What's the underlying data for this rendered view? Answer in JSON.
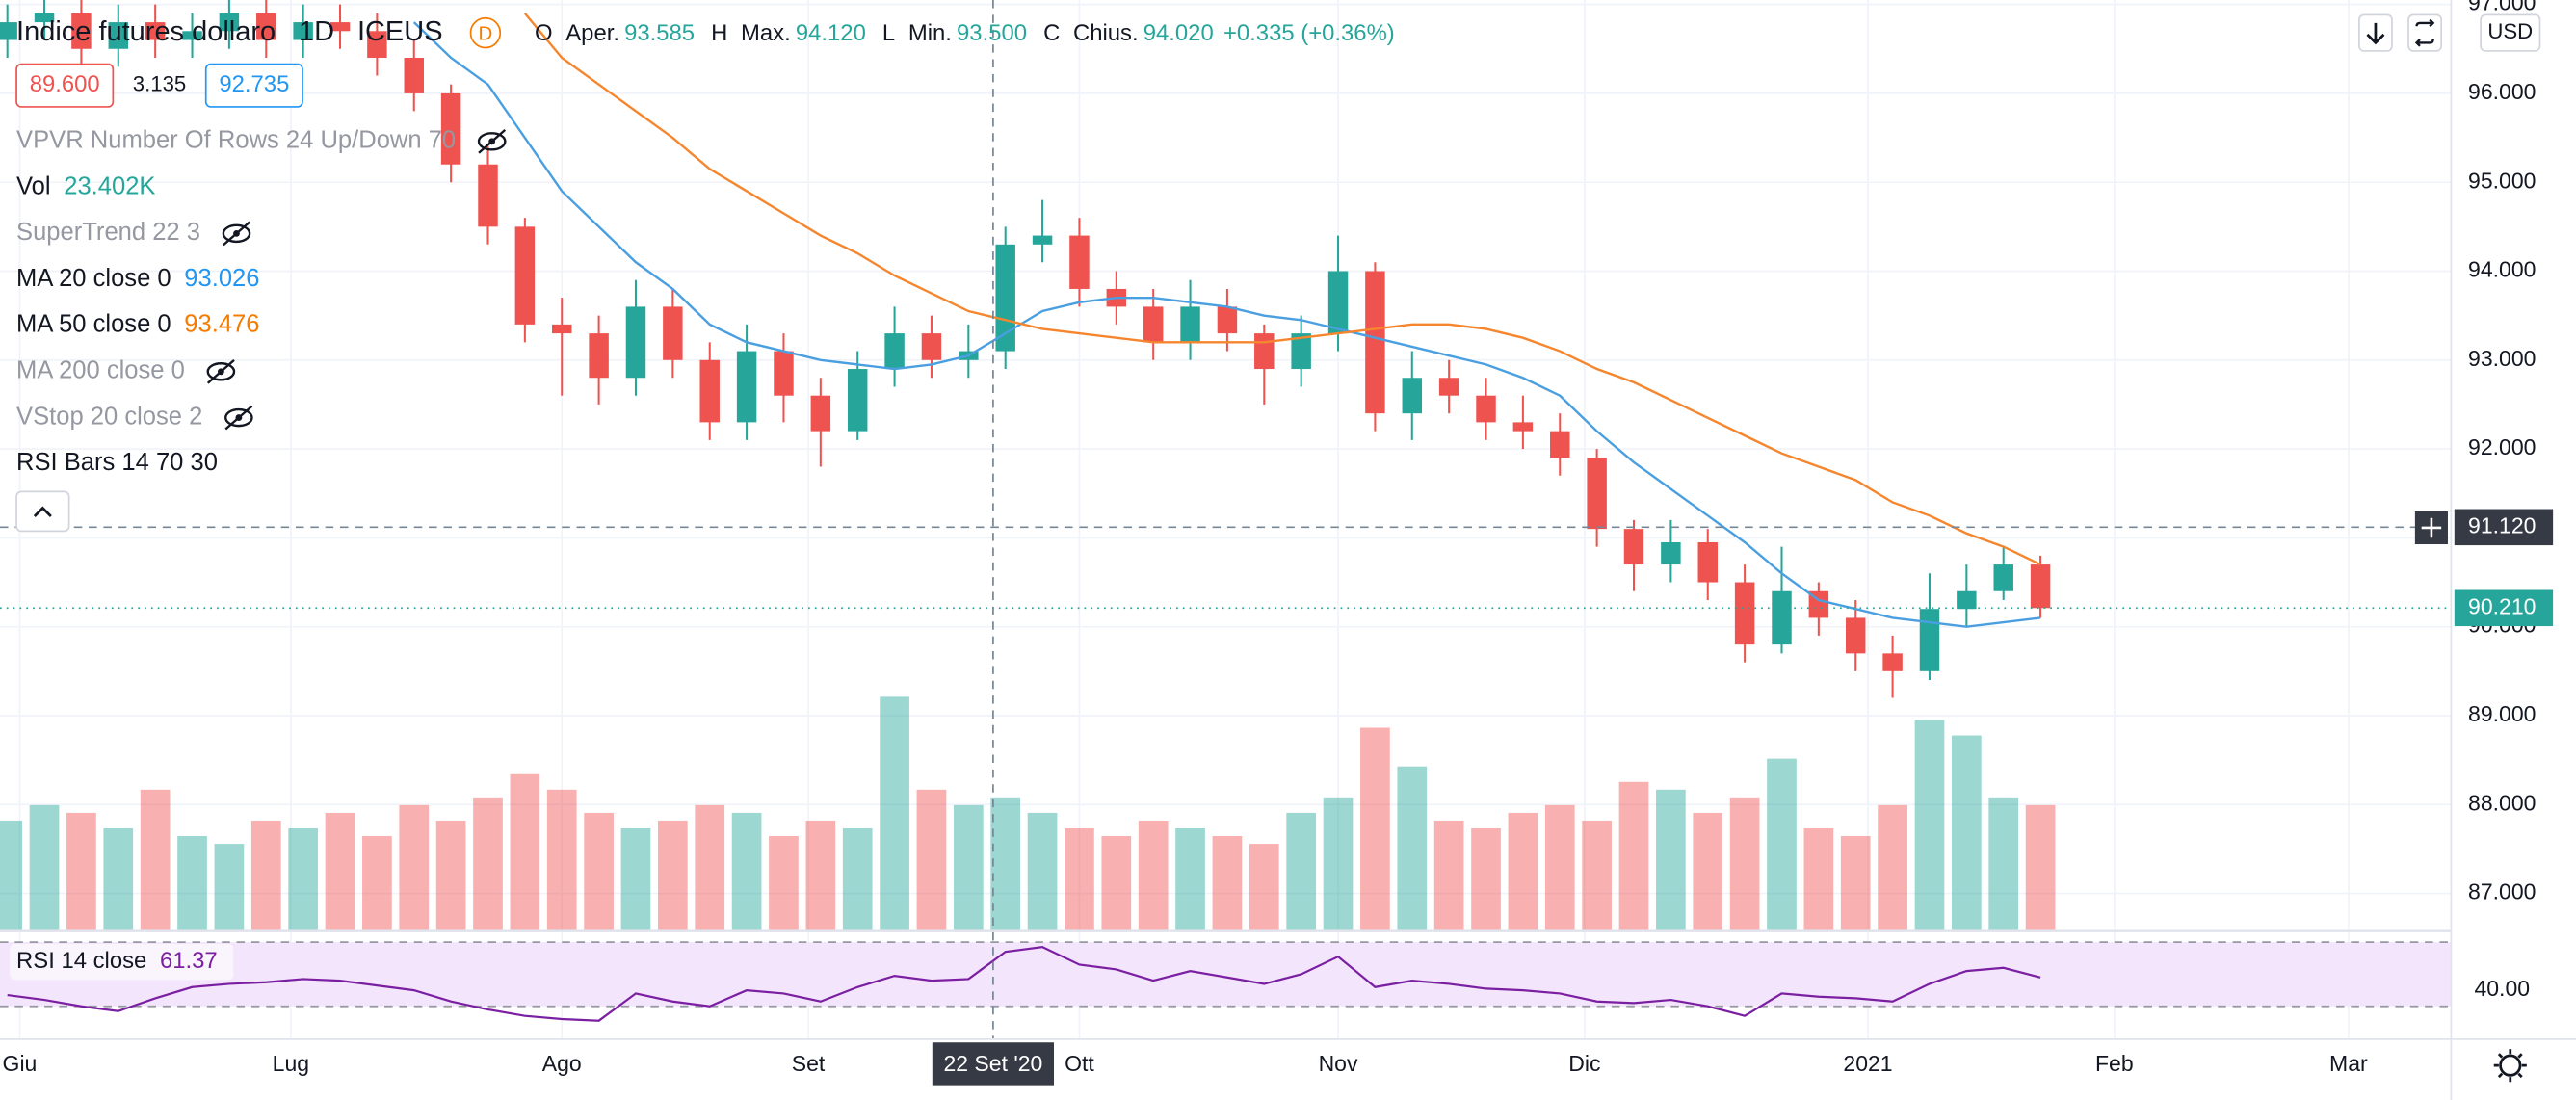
{
  "header": {
    "symbol": "Indice futures dollaro",
    "interval": "1D",
    "exchange": "ICEUS",
    "badge": "D",
    "ohlc": [
      {
        "key": "O",
        "label": "Aper.",
        "value": "93.585"
      },
      {
        "key": "H",
        "label": "Max.",
        "value": "94.120"
      },
      {
        "key": "L",
        "label": "Min.",
        "value": "93.500"
      },
      {
        "key": "C",
        "label": "Chius.",
        "value": "94.020"
      }
    ],
    "change": "+0.335 (+0.36%)",
    "bid": "89.600",
    "spread": "3.135",
    "ask": "92.735"
  },
  "indicators": [
    {
      "name": "VPVR Number Of Rows 24 Up/Down 70",
      "hidden": true
    },
    {
      "name": "Vol",
      "value": "23.402K",
      "value_color": "#26a69a"
    },
    {
      "name": "SuperTrend 22 3",
      "hidden": true
    },
    {
      "name": "MA 20 close 0",
      "value": "93.026",
      "value_color": "#2196f3"
    },
    {
      "name": "MA 50 close 0",
      "value": "93.476",
      "value_color": "#f57c00"
    },
    {
      "name": "MA 200 close 0",
      "hidden": true
    },
    {
      "name": "VStop 20 close 2",
      "hidden": true
    },
    {
      "name": "RSI Bars 14 70 30"
    }
  ],
  "chart_data": {
    "type": "candlestick",
    "currency": "USD",
    "up_color": "#26a69a",
    "down_color": "#ef5350",
    "grid": true,
    "x": [
      -1,
      2,
      5,
      8,
      11,
      14,
      17,
      20,
      23,
      26,
      29,
      32,
      35,
      38,
      41,
      44,
      47,
      50,
      53,
      56,
      59,
      62,
      65,
      68,
      71,
      74,
      77,
      80,
      83,
      86,
      89,
      92,
      95,
      98,
      101,
      104,
      107,
      110,
      113,
      116,
      119,
      122,
      125,
      128,
      131,
      134,
      137,
      140,
      143,
      146,
      149,
      152,
      155,
      158,
      161,
      164
    ],
    "open": [
      96.6,
      96.8,
      96.9,
      96.5,
      96.8,
      96.6,
      96.7,
      96.9,
      96.6,
      96.8,
      96.7,
      96.4,
      96.0,
      95.2,
      94.5,
      93.4,
      93.3,
      92.8,
      93.6,
      93.0,
      92.3,
      93.1,
      92.6,
      92.2,
      92.9,
      93.3,
      93.0,
      93.1,
      94.3,
      94.4,
      93.8,
      93.6,
      93.2,
      93.6,
      93.3,
      92.9,
      93.3,
      94.0,
      92.4,
      92.8,
      92.6,
      92.3,
      92.2,
      91.9,
      91.1,
      90.7,
      90.95,
      90.5,
      89.8,
      90.4,
      90.1,
      89.7,
      89.5,
      90.2,
      90.4,
      90.7
    ],
    "high": [
      97.0,
      97.1,
      97.1,
      97.0,
      97.0,
      96.9,
      97.1,
      97.1,
      97.0,
      97.0,
      96.9,
      96.6,
      96.1,
      95.4,
      94.6,
      93.7,
      93.5,
      93.9,
      93.8,
      93.2,
      93.4,
      93.3,
      92.8,
      93.1,
      93.6,
      93.5,
      93.4,
      94.5,
      94.8,
      94.6,
      94.0,
      93.8,
      93.9,
      93.8,
      93.4,
      93.5,
      94.4,
      94.1,
      93.1,
      93.0,
      92.8,
      92.6,
      92.4,
      92.0,
      91.2,
      91.2,
      91.1,
      90.7,
      90.9,
      90.5,
      90.3,
      89.9,
      90.6,
      90.7,
      90.9,
      90.8
    ],
    "low": [
      96.4,
      96.6,
      96.3,
      96.3,
      96.4,
      96.4,
      96.5,
      96.4,
      96.4,
      96.5,
      96.2,
      95.8,
      95.0,
      94.3,
      93.2,
      92.6,
      92.5,
      92.6,
      92.8,
      92.1,
      92.1,
      92.3,
      91.8,
      92.1,
      92.7,
      92.8,
      92.8,
      92.9,
      94.1,
      93.6,
      93.4,
      93.0,
      93.0,
      93.1,
      92.5,
      92.7,
      93.1,
      92.2,
      92.1,
      92.4,
      92.1,
      92.0,
      91.7,
      90.9,
      90.4,
      90.5,
      90.3,
      89.6,
      89.7,
      89.9,
      89.5,
      89.2,
      89.4,
      90.0,
      90.3,
      90.1
    ],
    "close": [
      96.8,
      96.9,
      96.5,
      96.8,
      96.6,
      96.7,
      96.9,
      96.6,
      96.8,
      96.7,
      96.4,
      96.0,
      95.2,
      94.5,
      93.4,
      93.3,
      92.8,
      93.6,
      93.0,
      92.3,
      93.1,
      92.6,
      92.2,
      92.9,
      93.3,
      93.0,
      93.1,
      94.3,
      94.4,
      93.8,
      93.6,
      93.2,
      93.6,
      93.3,
      92.9,
      93.3,
      94.0,
      92.4,
      92.8,
      92.6,
      92.3,
      92.2,
      91.9,
      91.1,
      90.7,
      90.95,
      90.5,
      89.8,
      90.4,
      90.1,
      89.7,
      89.5,
      90.2,
      90.4,
      90.7,
      90.21
    ],
    "xlim": [
      -1.6,
      197.33
    ],
    "xticks": [
      {
        "value": 0,
        "label": "Giu"
      },
      {
        "value": 22,
        "label": "Lug"
      },
      {
        "value": 44,
        "label": "Ago"
      },
      {
        "value": 64,
        "label": "Set"
      },
      {
        "value": 86,
        "label": "Ott"
      },
      {
        "value": 107,
        "label": "Nov"
      },
      {
        "value": 127,
        "label": "Dic"
      },
      {
        "value": 150,
        "label": "2021"
      },
      {
        "value": 170,
        "label": "Feb"
      },
      {
        "value": 189,
        "label": "Mar"
      }
    ],
    "ylim": [
      86.6,
      97.05
    ],
    "yticks": [
      {
        "value": 87,
        "label": "87.000"
      },
      {
        "value": 88,
        "label": "88.000"
      },
      {
        "value": 89,
        "label": "89.000"
      },
      {
        "value": 90,
        "label": "90.000"
      },
      {
        "value": 91,
        "label": "91.000"
      },
      {
        "value": 92,
        "label": "92.000"
      },
      {
        "value": 93,
        "label": "93.000"
      },
      {
        "value": 94,
        "label": "94.000"
      },
      {
        "value": 95,
        "label": "95.000"
      },
      {
        "value": 96,
        "label": "96.000"
      },
      {
        "value": 97,
        "label": "97.000"
      }
    ],
    "crosshair": {
      "x": {
        "value": 79,
        "label": "22 Set '20"
      },
      "y": {
        "value": 91.12,
        "label": "91.120"
      }
    },
    "last_price": {
      "value": 90.21,
      "label": "90.210"
    },
    "volume": {
      "ylim": [
        0,
        120
      ],
      "values": [
        14,
        16,
        15,
        13,
        18,
        12,
        11,
        14,
        13,
        15,
        12,
        16,
        14,
        17,
        20,
        18,
        15,
        13,
        14,
        16,
        15,
        12,
        14,
        13,
        30,
        18,
        16,
        17,
        15,
        13,
        12,
        14,
        13,
        12,
        11,
        15,
        17,
        26,
        21,
        14,
        13,
        15,
        16,
        14,
        19,
        18,
        15,
        17,
        22,
        13,
        12,
        16,
        27,
        25,
        17,
        16
      ]
    },
    "overlays": [
      {
        "color": "#4a9fe0",
        "values": [
          null,
          null,
          null,
          null,
          null,
          null,
          null,
          null,
          null,
          null,
          null,
          96.8,
          96.4,
          96.1,
          95.5,
          94.9,
          94.5,
          94.1,
          93.8,
          93.4,
          93.2,
          93.1,
          93.0,
          92.95,
          92.9,
          92.95,
          93.05,
          93.3,
          93.55,
          93.65,
          93.7,
          93.7,
          93.65,
          93.6,
          93.5,
          93.45,
          93.35,
          93.25,
          93.15,
          93.05,
          92.95,
          92.8,
          92.6,
          92.2,
          91.85,
          91.55,
          91.25,
          90.95,
          90.6,
          90.3,
          90.2,
          90.1,
          90.05,
          90.0,
          90.05,
          90.1
        ]
      },
      {
        "color": "#f5862e",
        "values": [
          null,
          null,
          null,
          null,
          null,
          null,
          null,
          null,
          null,
          null,
          null,
          null,
          null,
          null,
          96.9,
          96.4,
          96.1,
          95.8,
          95.5,
          95.15,
          94.9,
          94.65,
          94.4,
          94.2,
          93.95,
          93.75,
          93.55,
          93.45,
          93.35,
          93.3,
          93.25,
          93.2,
          93.2,
          93.2,
          93.2,
          93.25,
          93.3,
          93.35,
          93.4,
          93.4,
          93.35,
          93.25,
          93.1,
          92.9,
          92.75,
          92.55,
          92.35,
          92.15,
          91.95,
          91.8,
          91.65,
          91.4,
          91.25,
          91.05,
          90.9,
          90.7
        ]
      }
    ],
    "rsi": {
      "title": "RSI 14 close",
      "value": "61.37",
      "color": "#7b1fa2",
      "band_color": "#f3e5fb",
      "band": [
        30,
        70
      ],
      "ylim": [
        9.5,
        77.2
      ],
      "yticks": [
        {
          "value": 40,
          "label": "40.00"
        }
      ],
      "values": [
        37,
        34,
        30,
        27,
        35,
        42,
        44,
        45,
        47,
        46,
        43,
        40,
        33,
        28,
        24,
        22,
        21,
        38,
        33,
        30,
        40,
        38,
        33,
        42,
        49,
        46,
        47,
        64,
        67,
        56,
        53,
        46,
        52,
        48,
        44,
        50,
        61,
        42,
        46,
        44,
        41,
        40,
        38,
        33,
        32,
        34,
        30,
        24,
        38,
        36,
        35,
        33,
        44,
        52,
        54,
        48
      ]
    }
  }
}
